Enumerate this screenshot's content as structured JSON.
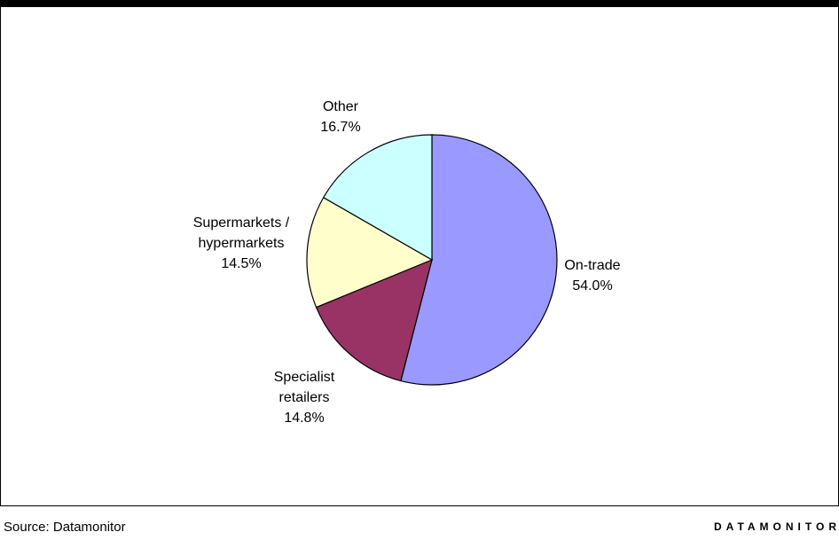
{
  "footer": {
    "source": "Source: Datamonitor",
    "brand": "DATAMONITOR"
  },
  "chart_data": {
    "type": "pie",
    "title": "",
    "slices": [
      {
        "name": "On-trade",
        "value": 54.0,
        "label": "54.0%",
        "color": "#9999FF"
      },
      {
        "name": "Specialist retailers",
        "value": 14.8,
        "label": "14.8%",
        "color": "#993366"
      },
      {
        "name": "Supermarkets / hypermarkets",
        "value": 14.5,
        "label": "14.5%",
        "color": "#FFFFCC"
      },
      {
        "name": "Other",
        "value": 16.7,
        "label": "16.7%",
        "color": "#CCFFFF"
      }
    ],
    "start": "12 o'clock",
    "direction": "clockwise",
    "legend": "none"
  }
}
